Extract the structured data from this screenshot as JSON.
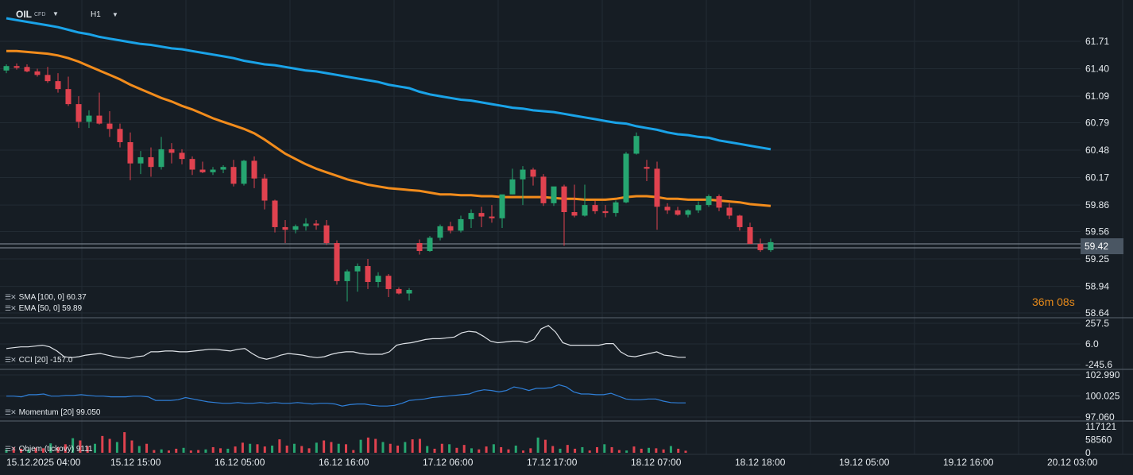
{
  "header": {
    "symbol": "OIL",
    "symbol_tag": "CFD",
    "timeframe": "H1"
  },
  "indicators": {
    "sma_legend": "SMA [100,  0] 60.37",
    "ema_legend": "EMA [50,  0] 59.89",
    "cci_legend": "CCI [20] -157.0",
    "momentum_legend": "Momentum  [20] 99.050",
    "volume_legend": "Objem  (tickový)  9111"
  },
  "countdown": {
    "minutes": "36",
    "m_unit": "m",
    "seconds": "08",
    "s_unit": "s"
  },
  "current_price": "59.42",
  "colors": {
    "background": "#161d24",
    "bull": "#26a671",
    "bear": "#e0424f",
    "sma": "#1aa3e8",
    "ema": "#f28c1c",
    "countdown": "#e78a1a",
    "indicator_line": "#dfe3e8",
    "momentum_line": "#2f7fd8"
  },
  "chart_data": [
    {
      "type": "candlestick",
      "title": "OIL CFD H1",
      "y_axis_ticks": [
        "61.71",
        "61.40",
        "61.09",
        "60.79",
        "60.48",
        "60.17",
        "59.86",
        "59.56",
        "59.25",
        "58.94",
        "58.64"
      ],
      "ylim": [
        58.64,
        61.86
      ],
      "x_axis_ticks": [
        "15.12.2025  04:00",
        "15.12  15:00",
        "16.12  05:00",
        "16.12  16:00",
        "17.12  06:00",
        "17.12  17:00",
        "18.12  07:00",
        "18.12  18:00",
        "19.12  05:00",
        "19.12  16:00",
        "20.12  03:00"
      ],
      "candles": [
        [
          61.38,
          61.45,
          61.35,
          61.43
        ],
        [
          61.43,
          61.46,
          61.39,
          61.41
        ],
        [
          61.42,
          61.45,
          61.36,
          61.37
        ],
        [
          61.37,
          61.4,
          61.31,
          61.33
        ],
        [
          61.33,
          61.42,
          61.24,
          61.26
        ],
        [
          61.26,
          61.35,
          61.13,
          61.17
        ],
        [
          61.17,
          61.31,
          60.98,
          61.0
        ],
        [
          61.0,
          61.09,
          60.73,
          60.8
        ],
        [
          60.8,
          60.93,
          60.73,
          60.87
        ],
        [
          60.87,
          61.13,
          60.77,
          60.78
        ],
        [
          60.78,
          60.92,
          60.63,
          60.72
        ],
        [
          60.72,
          60.78,
          60.51,
          60.57
        ],
        [
          60.57,
          60.68,
          60.14,
          60.33
        ],
        [
          60.33,
          60.47,
          60.21,
          60.4
        ],
        [
          60.4,
          60.51,
          60.18,
          60.29
        ],
        [
          60.29,
          60.63,
          60.26,
          60.49
        ],
        [
          60.49,
          60.56,
          60.33,
          60.45
        ],
        [
          60.45,
          60.49,
          60.32,
          60.38
        ],
        [
          60.38,
          60.41,
          60.2,
          60.26
        ],
        [
          60.26,
          60.35,
          60.22,
          60.23
        ],
        [
          60.23,
          60.29,
          60.2,
          60.26
        ],
        [
          60.26,
          60.31,
          60.22,
          60.29
        ],
        [
          60.29,
          60.37,
          60.07,
          60.1
        ],
        [
          60.1,
          60.37,
          60.08,
          60.36
        ],
        [
          60.36,
          60.41,
          60.05,
          60.16
        ],
        [
          60.16,
          60.21,
          59.81,
          59.91
        ],
        [
          59.91,
          59.92,
          59.55,
          59.61
        ],
        [
          59.61,
          59.69,
          59.43,
          59.58
        ],
        [
          59.58,
          59.64,
          59.54,
          59.62
        ],
        [
          59.62,
          59.71,
          59.57,
          59.65
        ],
        [
          59.65,
          59.69,
          59.58,
          59.63
        ],
        [
          59.63,
          59.69,
          59.41,
          59.43
        ],
        [
          59.43,
          59.46,
          58.96,
          59.0
        ],
        [
          59.0,
          59.13,
          58.77,
          59.11
        ],
        [
          59.11,
          59.2,
          58.88,
          59.17
        ],
        [
          59.17,
          59.25,
          58.91,
          58.99
        ],
        [
          58.99,
          59.1,
          58.93,
          59.06
        ],
        [
          59.06,
          59.08,
          58.82,
          58.91
        ],
        [
          58.91,
          58.93,
          58.85,
          58.86
        ],
        [
          58.86,
          58.92,
          58.78,
          58.9
        ],
        [
          59.43,
          59.47,
          59.3,
          59.34
        ],
        [
          59.34,
          59.51,
          59.33,
          59.49
        ],
        [
          59.49,
          59.64,
          59.46,
          59.62
        ],
        [
          59.62,
          59.67,
          59.54,
          59.57
        ],
        [
          59.57,
          59.74,
          59.55,
          59.7
        ],
        [
          59.7,
          59.81,
          59.6,
          59.77
        ],
        [
          59.77,
          59.84,
          59.61,
          59.73
        ],
        [
          59.73,
          59.86,
          59.66,
          59.71
        ],
        [
          59.71,
          59.95,
          59.6,
          59.98
        ],
        [
          59.98,
          60.27,
          59.98,
          60.15
        ],
        [
          60.15,
          60.3,
          59.86,
          60.26
        ],
        [
          60.26,
          60.28,
          60.08,
          60.18
        ],
        [
          60.18,
          60.21,
          59.85,
          59.88
        ],
        [
          59.88,
          60.05,
          59.85,
          60.07
        ],
        [
          60.07,
          60.09,
          59.4,
          59.78
        ],
        [
          59.78,
          60.09,
          59.72,
          59.74
        ],
        [
          59.74,
          60.09,
          59.73,
          59.86
        ],
        [
          59.86,
          59.91,
          59.76,
          59.79
        ],
        [
          59.79,
          59.86,
          59.72,
          59.77
        ],
        [
          59.77,
          59.91,
          59.73,
          59.89
        ],
        [
          59.89,
          60.46,
          59.88,
          60.44
        ],
        [
          60.44,
          60.68,
          60.43,
          60.64
        ],
        [
          60.29,
          60.37,
          60.13,
          60.27
        ],
        [
          60.27,
          60.35,
          59.58,
          59.84
        ],
        [
          59.84,
          59.88,
          59.76,
          59.8
        ],
        [
          59.8,
          59.84,
          59.74,
          59.75
        ],
        [
          59.75,
          59.81,
          59.72,
          59.8
        ],
        [
          59.8,
          59.9,
          59.77,
          59.86
        ],
        [
          59.86,
          59.98,
          59.84,
          59.96
        ],
        [
          59.96,
          59.98,
          59.79,
          59.83
        ],
        [
          59.83,
          59.88,
          59.7,
          59.74
        ],
        [
          59.74,
          59.75,
          59.57,
          59.61
        ],
        [
          59.61,
          59.66,
          59.42,
          59.42
        ],
        [
          59.42,
          59.48,
          59.33,
          59.35
        ],
        [
          59.35,
          59.48,
          59.33,
          59.44
        ]
      ],
      "series": [
        {
          "name": "SMA [100, 0]",
          "last": 60.37
        },
        {
          "name": "EMA [50, 0]",
          "last": 59.89
        }
      ],
      "sma_values": [
        61.97,
        61.95,
        61.93,
        61.91,
        61.89,
        61.87,
        61.84,
        61.81,
        61.79,
        61.76,
        61.74,
        61.72,
        61.7,
        61.68,
        61.67,
        61.65,
        61.63,
        61.62,
        61.6,
        61.58,
        61.56,
        61.54,
        61.52,
        61.49,
        61.47,
        61.45,
        61.44,
        61.42,
        61.4,
        61.38,
        61.37,
        61.35,
        61.33,
        61.31,
        61.29,
        61.27,
        61.25,
        61.22,
        61.2,
        61.18,
        61.14,
        61.11,
        61.09,
        61.07,
        61.05,
        61.04,
        61.02,
        61.0,
        60.98,
        60.96,
        60.95,
        60.93,
        60.92,
        60.91,
        60.89,
        60.87,
        60.85,
        60.83,
        60.81,
        60.79,
        60.78,
        60.75,
        60.73,
        60.71,
        60.68,
        60.66,
        60.65,
        60.63,
        60.62,
        60.59,
        60.57,
        60.55,
        60.53,
        60.51,
        60.49
      ],
      "ema_values": [
        61.6,
        61.6,
        61.59,
        61.58,
        61.57,
        61.55,
        61.52,
        61.48,
        61.43,
        61.38,
        61.33,
        61.28,
        61.22,
        61.17,
        61.12,
        61.07,
        61.03,
        60.98,
        60.94,
        60.89,
        60.84,
        60.8,
        60.76,
        60.72,
        60.67,
        60.6,
        60.52,
        60.44,
        60.38,
        60.32,
        60.27,
        60.23,
        60.19,
        60.15,
        60.12,
        60.09,
        60.07,
        60.05,
        60.04,
        60.03,
        60.02,
        60.0,
        59.98,
        59.98,
        59.97,
        59.97,
        59.96,
        59.96,
        59.95,
        59.95,
        59.95,
        59.95,
        59.95,
        59.94,
        59.93,
        59.93,
        59.92,
        59.92,
        59.92,
        59.93,
        59.95,
        59.96,
        59.96,
        59.95,
        59.93,
        59.93,
        59.92,
        59.92,
        59.92,
        59.91,
        59.9,
        59.89,
        59.87,
        59.86,
        59.85
      ]
    },
    {
      "type": "line",
      "title": "CCI [20] -157.0",
      "y_axis_ticks": [
        "257.5",
        "6.0",
        "-245.6"
      ],
      "ylim": [
        -245.6,
        257.5
      ],
      "values": [
        -50,
        -40,
        -30,
        -30,
        -20,
        -10,
        -30,
        -80,
        -150,
        -160,
        -150,
        -130,
        -120,
        -110,
        -130,
        -150,
        -160,
        -170,
        -150,
        -140,
        -90,
        -90,
        -80,
        -80,
        -90,
        -90,
        -80,
        -70,
        -60,
        -60,
        -70,
        -80,
        -60,
        -50,
        -110,
        -160,
        -180,
        -160,
        -130,
        -110,
        -120,
        -130,
        -150,
        -160,
        -150,
        -120,
        -100,
        -90,
        -90,
        -110,
        -120,
        -120,
        -120,
        -90,
        -10,
        10,
        20,
        40,
        60,
        70,
        70,
        80,
        90,
        140,
        160,
        150,
        100,
        40,
        20,
        30,
        40,
        40,
        20,
        60,
        190,
        230,
        150,
        20,
        -10,
        -10,
        -10,
        -10,
        -10,
        10,
        10,
        -90,
        -140,
        -150,
        -130,
        -110,
        -90,
        -130,
        -140,
        -157,
        -157
      ]
    },
    {
      "type": "line",
      "title": "Momentum [20] 99.050",
      "y_axis_ticks": [
        "102.990",
        "100.025",
        "97.060"
      ],
      "ylim": [
        97.06,
        102.99
      ],
      "values": [
        100.0,
        100.0,
        99.9,
        100.2,
        100.2,
        100.3,
        100.0,
        100.0,
        100.1,
        100.1,
        100.2,
        100.1,
        100.0,
        100.0,
        99.9,
        99.9,
        99.9,
        100.0,
        100.0,
        99.9,
        99.4,
        99.4,
        99.4,
        99.5,
        99.8,
        99.6,
        99.4,
        99.2,
        99.1,
        99.0,
        99.0,
        99.1,
        99.0,
        99.0,
        99.1,
        99.0,
        99.1,
        99.0,
        99.0,
        99.1,
        99.0,
        98.9,
        99.0,
        99.0,
        98.9,
        98.6,
        98.8,
        98.9,
        98.9,
        98.7,
        98.6,
        98.6,
        98.7,
        99.0,
        99.4,
        99.5,
        99.6,
        99.8,
        99.9,
        100.0,
        100.1,
        100.2,
        100.3,
        100.7,
        100.9,
        100.8,
        100.6,
        100.8,
        101.3,
        101.1,
        100.8,
        101.1,
        101.1,
        101.2,
        101.6,
        101.3,
        100.6,
        100.3,
        100.3,
        100.2,
        100.2,
        100.4,
        100.0,
        99.6,
        99.5,
        99.5,
        99.6,
        99.6,
        99.3,
        99.1,
        99.05,
        99.05
      ]
    },
    {
      "type": "bar",
      "title": "Objem (tickový) 9111",
      "y_axis_ticks": [
        "117121",
        "58560",
        "0"
      ],
      "ylim": [
        0,
        117121
      ],
      "values": [
        15000,
        25000,
        18000,
        14000,
        22000,
        20000,
        42000,
        25000,
        38000,
        65000,
        55000,
        30000,
        40000,
        75000,
        62000,
        48000,
        92000,
        55000,
        30000,
        40000,
        12000,
        15000,
        10000,
        18000,
        22000,
        10000,
        12000,
        15000,
        25000,
        20000,
        18000,
        28000,
        45000,
        40000,
        38000,
        28000,
        32000,
        60000,
        32000,
        40000,
        30000,
        20000,
        45000,
        55000,
        48000,
        40000,
        38000,
        12000,
        58000,
        68000,
        62000,
        48000,
        40000,
        32000,
        48000,
        60000,
        62000,
        30000,
        18000,
        40000,
        38000,
        22000,
        35000,
        20000,
        15000,
        28000,
        38000,
        25000,
        15000,
        32000,
        10000,
        20000,
        68000,
        58000,
        30000,
        18000,
        35000,
        18000,
        25000,
        10000,
        25000,
        38000,
        25000,
        12000,
        10000,
        28000,
        18000,
        22000,
        20000,
        15000,
        30000,
        18000,
        9111
      ]
    }
  ]
}
